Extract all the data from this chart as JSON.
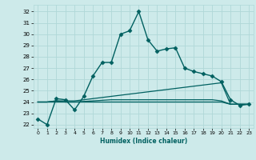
{
  "xlabel": "Humidex (Indice chaleur)",
  "ylabel": "",
  "bg_color": "#cdeaea",
  "grid_color": "#b0d8d8",
  "line_color": "#006060",
  "xlim": [
    -0.5,
    23.5
  ],
  "ylim": [
    21.7,
    32.6
  ],
  "yticks": [
    22,
    23,
    24,
    25,
    26,
    27,
    28,
    29,
    30,
    31,
    32
  ],
  "xticks": [
    0,
    1,
    2,
    3,
    4,
    5,
    6,
    7,
    8,
    9,
    10,
    11,
    12,
    13,
    14,
    15,
    16,
    17,
    18,
    19,
    20,
    21,
    22,
    23
  ],
  "lines": [
    {
      "x": [
        0,
        1,
        2,
        3,
        4,
        5,
        6,
        7,
        8,
        9,
        10,
        11,
        12,
        13,
        14,
        15,
        16,
        17,
        18,
        19,
        20,
        21,
        22,
        23
      ],
      "y": [
        22.5,
        22.0,
        24.3,
        24.2,
        23.3,
        24.5,
        26.3,
        27.5,
        27.5,
        30.0,
        30.3,
        32.0,
        29.5,
        28.5,
        28.7,
        28.8,
        27.0,
        26.7,
        26.5,
        26.3,
        25.8,
        24.2,
        23.7,
        23.8
      ],
      "marker": "D",
      "markersize": 2.5,
      "linewidth": 1.0
    },
    {
      "x": [
        0,
        1,
        2,
        3,
        4,
        5,
        6,
        7,
        8,
        9,
        10,
        11,
        12,
        13,
        14,
        15,
        16,
        17,
        18,
        19,
        20,
        21,
        22,
        23
      ],
      "y": [
        24.0,
        24.0,
        24.1,
        24.1,
        24.1,
        24.2,
        24.3,
        24.4,
        24.5,
        24.6,
        24.7,
        24.8,
        24.9,
        25.0,
        25.1,
        25.2,
        25.3,
        25.4,
        25.5,
        25.6,
        25.7,
        23.8,
        23.8,
        23.8
      ],
      "marker": null,
      "markersize": 0,
      "linewidth": 0.9
    },
    {
      "x": [
        0,
        1,
        2,
        3,
        4,
        5,
        6,
        7,
        8,
        9,
        10,
        11,
        12,
        13,
        14,
        15,
        16,
        17,
        18,
        19,
        20,
        21,
        22,
        23
      ],
      "y": [
        24.0,
        24.0,
        24.1,
        24.0,
        24.0,
        24.05,
        24.1,
        24.15,
        24.2,
        24.2,
        24.2,
        24.2,
        24.2,
        24.2,
        24.2,
        24.2,
        24.2,
        24.2,
        24.2,
        24.2,
        24.1,
        23.8,
        23.8,
        23.8
      ],
      "marker": null,
      "markersize": 0,
      "linewidth": 0.9
    },
    {
      "x": [
        0,
        1,
        2,
        3,
        4,
        5,
        6,
        7,
        8,
        9,
        10,
        11,
        12,
        13,
        14,
        15,
        16,
        17,
        18,
        19,
        20,
        21,
        22,
        23
      ],
      "y": [
        24.0,
        24.0,
        24.0,
        24.0,
        24.0,
        24.0,
        24.0,
        24.0,
        24.0,
        24.0,
        24.0,
        24.0,
        24.0,
        24.0,
        24.0,
        24.0,
        24.0,
        24.0,
        24.0,
        24.0,
        24.0,
        23.8,
        23.8,
        23.8
      ],
      "marker": null,
      "markersize": 0,
      "linewidth": 0.9
    }
  ]
}
